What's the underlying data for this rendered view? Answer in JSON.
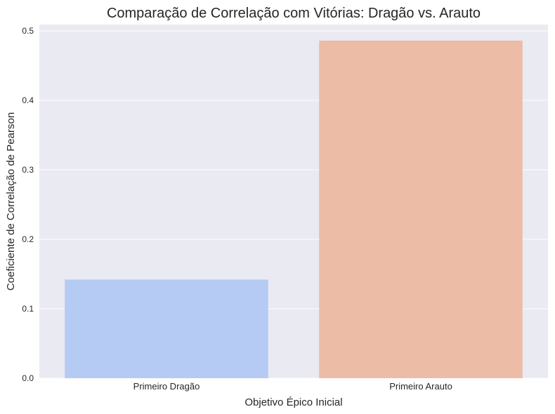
{
  "chart_data": {
    "type": "bar",
    "title": "Comparação de Correlação com Vitórias: Dragão vs. Arauto",
    "xlabel": "Objetivo Épico Inicial",
    "ylabel": "Coeficiente de Correlação de Pearson",
    "categories": [
      "Primeiro Dragão",
      "Primeiro Arauto"
    ],
    "values": [
      0.142,
      0.486
    ],
    "colors": [
      "#b5cbf4",
      "#ecbca7"
    ],
    "ylim": [
      0,
      0.5
    ],
    "yticks": [
      "0.0",
      "0.1",
      "0.2",
      "0.3",
      "0.4",
      "0.5"
    ],
    "grid": true,
    "background": "#eaeaf2"
  }
}
